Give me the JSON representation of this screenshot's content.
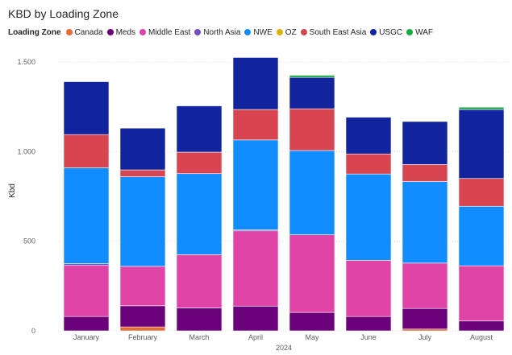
{
  "chart_data": {
    "type": "bar",
    "stacked": true,
    "title": "KBD by Loading Zone",
    "legend_title": "Loading Zone",
    "legend_position": "top-left",
    "xlabel": "2024",
    "ylabel": "Kbd",
    "ylim": [
      0,
      1500
    ],
    "yticks": [
      0,
      500,
      1000,
      1500
    ],
    "ytick_labels": [
      "0",
      "500",
      "1.000",
      "1.500"
    ],
    "grid": true,
    "categories": [
      "January",
      "February",
      "March",
      "April",
      "May",
      "June",
      "July",
      "August"
    ],
    "series": [
      {
        "name": "Canada",
        "color": "#E66C37",
        "values": [
          0,
          22,
          0,
          0,
          0,
          0,
          10,
          0
        ]
      },
      {
        "name": "Meds",
        "color": "#6B007B",
        "values": [
          80,
          118,
          128,
          138,
          103,
          80,
          115,
          55
        ]
      },
      {
        "name": "Middle East",
        "color": "#E044A7",
        "values": [
          285,
          220,
          297,
          420,
          433,
          313,
          253,
          308
        ]
      },
      {
        "name": "North Asia",
        "color": "#744EC2",
        "values": [
          10,
          0,
          0,
          5,
          0,
          0,
          0,
          0
        ]
      },
      {
        "name": "NWE",
        "color": "#118DFF",
        "values": [
          535,
          500,
          452,
          502,
          470,
          482,
          455,
          332
        ]
      },
      {
        "name": "OZ",
        "color": "#D9B300",
        "values": [
          0,
          0,
          0,
          0,
          0,
          0,
          0,
          0
        ]
      },
      {
        "name": "South East Asia",
        "color": "#D64550",
        "values": [
          185,
          38,
          120,
          170,
          233,
          112,
          95,
          155
        ]
      },
      {
        "name": "USGC",
        "color": "#12239E",
        "values": [
          295,
          233,
          258,
          290,
          175,
          205,
          240,
          385
        ]
      },
      {
        "name": "WAF",
        "color": "#1AAB40",
        "values": [
          0,
          0,
          0,
          0,
          12,
          0,
          0,
          13
        ]
      }
    ]
  }
}
